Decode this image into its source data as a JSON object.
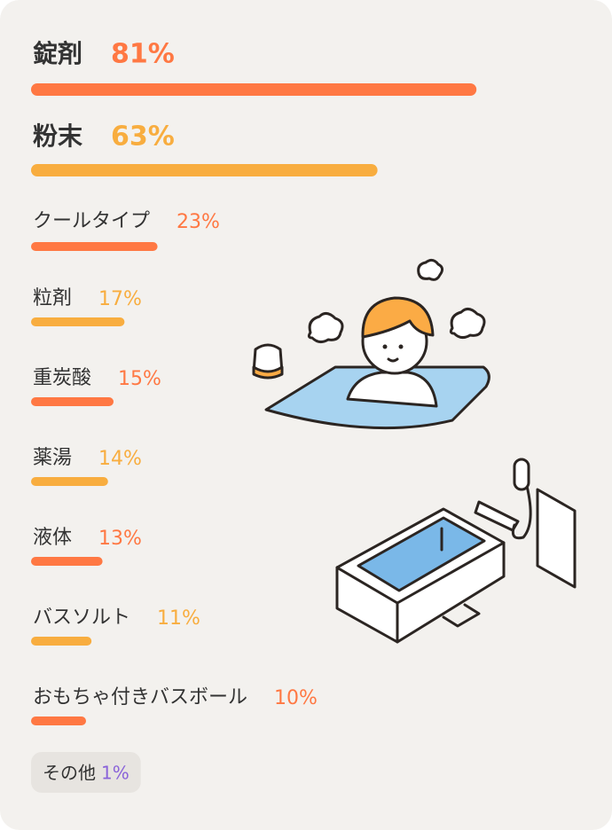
{
  "chart_data": {
    "type": "bar",
    "categories": [
      "錠剤",
      "粉末",
      "クールタイプ",
      "粒剤",
      "重炭酸",
      "薬湯",
      "液体",
      "バスソルト",
      "おもちゃ付きバスボール"
    ],
    "values": [
      81,
      63,
      23,
      17,
      15,
      14,
      13,
      11,
      10
    ],
    "value_labels": [
      "81%",
      "63%",
      "23%",
      "17%",
      "15%",
      "14%",
      "13%",
      "11%",
      "10%"
    ],
    "colors": [
      "#ff7843",
      "#f8ad3f",
      "#ff7843",
      "#f8ad3f",
      "#ff7843",
      "#f8ad3f",
      "#ff7843",
      "#f8ad3f",
      "#ff7843"
    ],
    "xlim": [
      0,
      100
    ],
    "other": {
      "label": "その他",
      "value": 1,
      "value_label": "1%",
      "color": "#8a63d9"
    }
  }
}
